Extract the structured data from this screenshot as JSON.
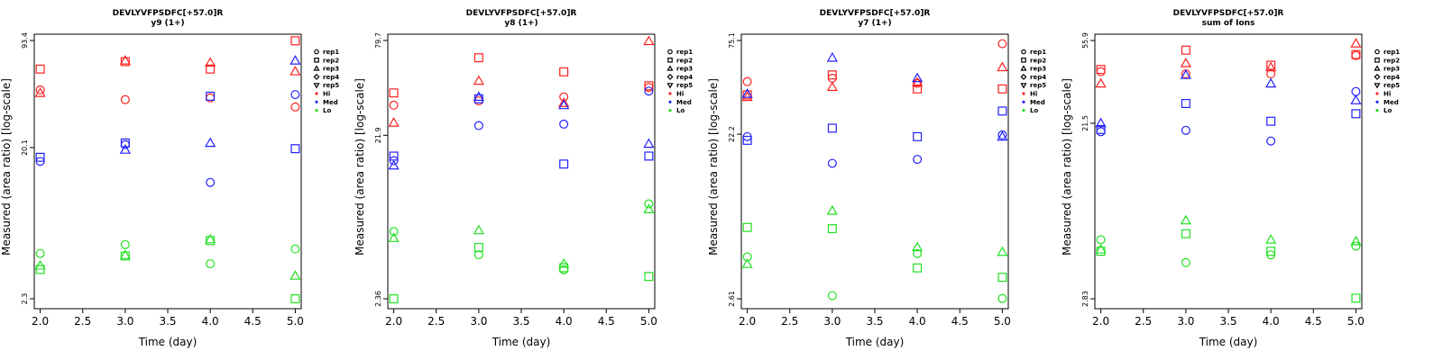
{
  "colors": {
    "Hi": "#ff2020",
    "Med": "#2020ff",
    "Lo": "#20e020"
  },
  "legend": {
    "entries": [
      {
        "label": "rep1",
        "symbol": "circle"
      },
      {
        "label": "rep2",
        "symbol": "square"
      },
      {
        "label": "rep3",
        "symbol": "triangle-up"
      },
      {
        "label": "rep4",
        "symbol": "diamond"
      },
      {
        "label": "rep5",
        "symbol": "triangle-down"
      },
      {
        "label": "Hi",
        "symbol": "dot",
        "color": "#ff2020"
      },
      {
        "label": "Med",
        "symbol": "dot",
        "color": "#2020ff"
      },
      {
        "label": "Lo",
        "symbol": "dot",
        "color": "#20e020"
      }
    ]
  },
  "chart_data": [
    {
      "type": "scatter",
      "title": "DEVLYVFPSDFC[+57.0]R",
      "subtitle": "y9 (1+)",
      "xlabel": "Time (day)",
      "ylabel": "Measured (area ratio) [log-scale]",
      "y_scale": "log",
      "xlim": [
        1.93,
        5.07
      ],
      "ylim": [
        2.3,
        93.4
      ],
      "xticks": [
        "2.0",
        "2.5",
        "3.0",
        "3.5",
        "4.0",
        "4.5",
        "5.0"
      ],
      "yticks": [
        "2.3",
        "20.1",
        "93.4"
      ],
      "points": [
        {
          "x": 2,
          "y": 46,
          "series": "Hi",
          "rep": "rep1"
        },
        {
          "x": 2,
          "y": 62,
          "series": "Hi",
          "rep": "rep2"
        },
        {
          "x": 2,
          "y": 44,
          "series": "Hi",
          "rep": "rep3"
        },
        {
          "x": 2,
          "y": 16.5,
          "series": "Med",
          "rep": "rep1"
        },
        {
          "x": 2,
          "y": 17.5,
          "series": "Med",
          "rep": "rep2"
        },
        {
          "x": 2,
          "y": 4.4,
          "series": "Lo",
          "rep": "rep1"
        },
        {
          "x": 2,
          "y": 3.5,
          "series": "Lo",
          "rep": "rep2"
        },
        {
          "x": 2,
          "y": 3.7,
          "series": "Lo",
          "rep": "rep3"
        },
        {
          "x": 3,
          "y": 40,
          "series": "Hi",
          "rep": "rep1"
        },
        {
          "x": 3,
          "y": 69,
          "series": "Hi",
          "rep": "rep2"
        },
        {
          "x": 3,
          "y": 70,
          "series": "Hi",
          "rep": "rep3"
        },
        {
          "x": 3,
          "y": 21,
          "series": "Med",
          "rep": "rep1"
        },
        {
          "x": 3,
          "y": 21.5,
          "series": "Med",
          "rep": "rep2"
        },
        {
          "x": 3,
          "y": 19.5,
          "series": "Med",
          "rep": "rep3"
        },
        {
          "x": 3,
          "y": 5.0,
          "series": "Lo",
          "rep": "rep1"
        },
        {
          "x": 3,
          "y": 4.25,
          "series": "Lo",
          "rep": "rep2"
        },
        {
          "x": 3,
          "y": 4.3,
          "series": "Lo",
          "rep": "rep3"
        },
        {
          "x": 4,
          "y": 41,
          "series": "Hi",
          "rep": "rep1"
        },
        {
          "x": 4,
          "y": 62,
          "series": "Hi",
          "rep": "rep2"
        },
        {
          "x": 4,
          "y": 68,
          "series": "Hi",
          "rep": "rep3"
        },
        {
          "x": 4,
          "y": 12.2,
          "series": "Med",
          "rep": "rep1"
        },
        {
          "x": 4,
          "y": 42,
          "series": "Med",
          "rep": "rep2"
        },
        {
          "x": 4,
          "y": 21.5,
          "series": "Med",
          "rep": "rep3"
        },
        {
          "x": 4,
          "y": 3.8,
          "series": "Lo",
          "rep": "rep1"
        },
        {
          "x": 4,
          "y": 5.3,
          "series": "Lo",
          "rep": "rep2"
        },
        {
          "x": 4,
          "y": 5.4,
          "series": "Lo",
          "rep": "rep3"
        },
        {
          "x": 5,
          "y": 36,
          "series": "Hi",
          "rep": "rep1"
        },
        {
          "x": 5,
          "y": 93,
          "series": "Hi",
          "rep": "rep2"
        },
        {
          "x": 5,
          "y": 60,
          "series": "Hi",
          "rep": "rep3"
        },
        {
          "x": 5,
          "y": 43,
          "series": "Med",
          "rep": "rep1"
        },
        {
          "x": 5,
          "y": 19.8,
          "series": "Med",
          "rep": "rep2"
        },
        {
          "x": 5,
          "y": 70,
          "series": "Med",
          "rep": "rep3"
        },
        {
          "x": 5,
          "y": 4.7,
          "series": "Lo",
          "rep": "rep1"
        },
        {
          "x": 5,
          "y": 2.3,
          "series": "Lo",
          "rep": "rep2"
        },
        {
          "x": 5,
          "y": 3.2,
          "series": "Lo",
          "rep": "rep3"
        }
      ]
    },
    {
      "type": "scatter",
      "title": "DEVLYVFPSDFC[+57.0]R",
      "subtitle": "y8 (1+)",
      "xlabel": "Time (day)",
      "ylabel": "Measured (area ratio) [log-scale]",
      "y_scale": "log",
      "xlim": [
        1.93,
        5.07
      ],
      "ylim": [
        2.36,
        79.7
      ],
      "xticks": [
        "2.0",
        "2.5",
        "3.0",
        "3.5",
        "4.0",
        "4.5",
        "5.0"
      ],
      "yticks": [
        "2.36",
        "21.9",
        "79.7"
      ],
      "points": [
        {
          "x": 2,
          "y": 33,
          "series": "Hi",
          "rep": "rep1"
        },
        {
          "x": 2,
          "y": 39,
          "series": "Hi",
          "rep": "rep2"
        },
        {
          "x": 2,
          "y": 26,
          "series": "Hi",
          "rep": "rep3"
        },
        {
          "x": 2,
          "y": 15.5,
          "series": "Med",
          "rep": "rep1"
        },
        {
          "x": 2,
          "y": 16.5,
          "series": "Med",
          "rep": "rep2"
        },
        {
          "x": 2,
          "y": 14.5,
          "series": "Med",
          "rep": "rep3"
        },
        {
          "x": 2,
          "y": 5.9,
          "series": "Lo",
          "rep": "rep1"
        },
        {
          "x": 2,
          "y": 2.36,
          "series": "Lo",
          "rep": "rep2"
        },
        {
          "x": 2,
          "y": 5.4,
          "series": "Lo",
          "rep": "rep3"
        },
        {
          "x": 3,
          "y": 35,
          "series": "Hi",
          "rep": "rep1"
        },
        {
          "x": 3,
          "y": 63,
          "series": "Hi",
          "rep": "rep2"
        },
        {
          "x": 3,
          "y": 46,
          "series": "Hi",
          "rep": "rep3"
        },
        {
          "x": 3,
          "y": 25,
          "series": "Med",
          "rep": "rep1"
        },
        {
          "x": 3,
          "y": 36,
          "series": "Med",
          "rep": "rep2"
        },
        {
          "x": 3,
          "y": 37,
          "series": "Med",
          "rep": "rep3"
        },
        {
          "x": 3,
          "y": 4.3,
          "series": "Lo",
          "rep": "rep1"
        },
        {
          "x": 3,
          "y": 4.75,
          "series": "Lo",
          "rep": "rep2"
        },
        {
          "x": 3,
          "y": 6.0,
          "series": "Lo",
          "rep": "rep3"
        },
        {
          "x": 4,
          "y": 37,
          "series": "Hi",
          "rep": "rep1"
        },
        {
          "x": 4,
          "y": 52,
          "series": "Hi",
          "rep": "rep2"
        },
        {
          "x": 4,
          "y": 34,
          "series": "Hi",
          "rep": "rep3"
        },
        {
          "x": 4,
          "y": 25.5,
          "series": "Med",
          "rep": "rep1"
        },
        {
          "x": 4,
          "y": 14.8,
          "series": "Med",
          "rep": "rep2"
        },
        {
          "x": 4,
          "y": 33,
          "series": "Med",
          "rep": "rep3"
        },
        {
          "x": 4,
          "y": 3.5,
          "series": "Lo",
          "rep": "rep1"
        },
        {
          "x": 4,
          "y": 3.6,
          "series": "Lo",
          "rep": "rep2"
        },
        {
          "x": 4,
          "y": 3.8,
          "series": "Lo",
          "rep": "rep3"
        },
        {
          "x": 5,
          "y": 42,
          "series": "Hi",
          "rep": "rep1"
        },
        {
          "x": 5,
          "y": 43,
          "series": "Hi",
          "rep": "rep2"
        },
        {
          "x": 5,
          "y": 79,
          "series": "Hi",
          "rep": "rep3"
        },
        {
          "x": 5,
          "y": 40,
          "series": "Med",
          "rep": "rep1"
        },
        {
          "x": 5,
          "y": 16.5,
          "series": "Med",
          "rep": "rep2"
        },
        {
          "x": 5,
          "y": 19.5,
          "series": "Med",
          "rep": "rep3"
        },
        {
          "x": 5,
          "y": 8.6,
          "series": "Lo",
          "rep": "rep1"
        },
        {
          "x": 5,
          "y": 3.2,
          "series": "Lo",
          "rep": "rep2"
        },
        {
          "x": 5,
          "y": 8.0,
          "series": "Lo",
          "rep": "rep3"
        }
      ]
    },
    {
      "type": "scatter",
      "title": "DEVLYVFPSDFC[+57.0]R",
      "subtitle": "y7 (1+)",
      "xlabel": "Time (day)",
      "ylabel": "Measured (area ratio) [log-scale]",
      "y_scale": "log",
      "xlim": [
        1.93,
        5.07
      ],
      "ylim": [
        2.61,
        75.1
      ],
      "xticks": [
        "2.0",
        "2.5",
        "3.0",
        "3.5",
        "4.0",
        "4.5",
        "5.0"
      ],
      "yticks": [
        "2.61",
        "22.2",
        "75.1"
      ],
      "points": [
        {
          "x": 2,
          "y": 44,
          "series": "Hi",
          "rep": "rep1"
        },
        {
          "x": 2,
          "y": 37,
          "series": "Hi",
          "rep": "rep2"
        },
        {
          "x": 2,
          "y": 36,
          "series": "Hi",
          "rep": "rep3"
        },
        {
          "x": 2,
          "y": 21.5,
          "series": "Med",
          "rep": "rep1"
        },
        {
          "x": 2,
          "y": 20.5,
          "series": "Med",
          "rep": "rep2"
        },
        {
          "x": 2,
          "y": 37.5,
          "series": "Med",
          "rep": "rep3"
        },
        {
          "x": 2,
          "y": 4.5,
          "series": "Lo",
          "rep": "rep1"
        },
        {
          "x": 2,
          "y": 6.6,
          "series": "Lo",
          "rep": "rep2"
        },
        {
          "x": 2,
          "y": 4.1,
          "series": "Lo",
          "rep": "rep3"
        },
        {
          "x": 3,
          "y": 46,
          "series": "Hi",
          "rep": "rep1"
        },
        {
          "x": 3,
          "y": 48,
          "series": "Hi",
          "rep": "rep2"
        },
        {
          "x": 3,
          "y": 41,
          "series": "Hi",
          "rep": "rep3"
        },
        {
          "x": 3,
          "y": 15.2,
          "series": "Med",
          "rep": "rep1"
        },
        {
          "x": 3,
          "y": 24,
          "series": "Med",
          "rep": "rep2"
        },
        {
          "x": 3,
          "y": 60,
          "series": "Med",
          "rep": "rep3"
        },
        {
          "x": 3,
          "y": 2.72,
          "series": "Lo",
          "rep": "rep1"
        },
        {
          "x": 3,
          "y": 6.5,
          "series": "Lo",
          "rep": "rep2"
        },
        {
          "x": 3,
          "y": 8.2,
          "series": "Lo",
          "rep": "rep3"
        },
        {
          "x": 4,
          "y": 43,
          "series": "Hi",
          "rep": "rep1"
        },
        {
          "x": 4,
          "y": 40,
          "series": "Hi",
          "rep": "rep2"
        },
        {
          "x": 4,
          "y": 43.5,
          "series": "Hi",
          "rep": "rep3"
        },
        {
          "x": 4,
          "y": 16,
          "series": "Med",
          "rep": "rep1"
        },
        {
          "x": 4,
          "y": 21.5,
          "series": "Med",
          "rep": "rep2"
        },
        {
          "x": 4,
          "y": 46,
          "series": "Med",
          "rep": "rep3"
        },
        {
          "x": 4,
          "y": 4.7,
          "series": "Lo",
          "rep": "rep1"
        },
        {
          "x": 4,
          "y": 3.9,
          "series": "Lo",
          "rep": "rep2"
        },
        {
          "x": 4,
          "y": 5.1,
          "series": "Lo",
          "rep": "rep3"
        },
        {
          "x": 5,
          "y": 72,
          "series": "Hi",
          "rep": "rep1"
        },
        {
          "x": 5,
          "y": 40,
          "series": "Hi",
          "rep": "rep2"
        },
        {
          "x": 5,
          "y": 53,
          "series": "Hi",
          "rep": "rep3"
        },
        {
          "x": 5,
          "y": 22,
          "series": "Med",
          "rep": "rep1"
        },
        {
          "x": 5,
          "y": 30,
          "series": "Med",
          "rep": "rep2"
        },
        {
          "x": 5,
          "y": 21.5,
          "series": "Med",
          "rep": "rep3"
        },
        {
          "x": 5,
          "y": 2.62,
          "series": "Lo",
          "rep": "rep1"
        },
        {
          "x": 5,
          "y": 3.45,
          "series": "Lo",
          "rep": "rep2"
        },
        {
          "x": 5,
          "y": 4.8,
          "series": "Lo",
          "rep": "rep3"
        }
      ]
    },
    {
      "type": "scatter",
      "title": "DEVLYVFPSDFC[+57.0]R",
      "subtitle": "sum of Ions",
      "xlabel": "Time (day)",
      "ylabel": "Measured (area ratio) [log-scale]",
      "y_scale": "log",
      "xlim": [
        1.93,
        5.07
      ],
      "ylim": [
        2.83,
        55.9
      ],
      "xticks": [
        "2.0",
        "2.5",
        "3.0",
        "3.5",
        "4.0",
        "4.5",
        "5.0"
      ],
      "yticks": [
        "2.83",
        "21.5",
        "55.9"
      ],
      "points": [
        {
          "x": 2,
          "y": 39,
          "series": "Hi",
          "rep": "rep1"
        },
        {
          "x": 2,
          "y": 40,
          "series": "Hi",
          "rep": "rep2"
        },
        {
          "x": 2,
          "y": 34,
          "series": "Hi",
          "rep": "rep3"
        },
        {
          "x": 2,
          "y": 19.5,
          "series": "Med",
          "rep": "rep1"
        },
        {
          "x": 2,
          "y": 20,
          "series": "Med",
          "rep": "rep2"
        },
        {
          "x": 2,
          "y": 21.5,
          "series": "Med",
          "rep": "rep3"
        },
        {
          "x": 2,
          "y": 5.6,
          "series": "Lo",
          "rep": "rep1"
        },
        {
          "x": 2,
          "y": 4.9,
          "series": "Lo",
          "rep": "rep2"
        },
        {
          "x": 2,
          "y": 5.0,
          "series": "Lo",
          "rep": "rep3"
        },
        {
          "x": 3,
          "y": 38,
          "series": "Hi",
          "rep": "rep1"
        },
        {
          "x": 3,
          "y": 50,
          "series": "Hi",
          "rep": "rep2"
        },
        {
          "x": 3,
          "y": 43,
          "series": "Hi",
          "rep": "rep3"
        },
        {
          "x": 3,
          "y": 19.8,
          "series": "Med",
          "rep": "rep1"
        },
        {
          "x": 3,
          "y": 27,
          "series": "Med",
          "rep": "rep2"
        },
        {
          "x": 3,
          "y": 37.5,
          "series": "Med",
          "rep": "rep3"
        },
        {
          "x": 3,
          "y": 4.3,
          "series": "Lo",
          "rep": "rep1"
        },
        {
          "x": 3,
          "y": 6.0,
          "series": "Lo",
          "rep": "rep2"
        },
        {
          "x": 3,
          "y": 7.0,
          "series": "Lo",
          "rep": "rep3"
        },
        {
          "x": 4,
          "y": 38,
          "series": "Hi",
          "rep": "rep1"
        },
        {
          "x": 4,
          "y": 42,
          "series": "Hi",
          "rep": "rep2"
        },
        {
          "x": 4,
          "y": 41,
          "series": "Hi",
          "rep": "rep3"
        },
        {
          "x": 4,
          "y": 17.5,
          "series": "Med",
          "rep": "rep1"
        },
        {
          "x": 4,
          "y": 22,
          "series": "Med",
          "rep": "rep2"
        },
        {
          "x": 4,
          "y": 34,
          "series": "Med",
          "rep": "rep3"
        },
        {
          "x": 4,
          "y": 4.7,
          "series": "Lo",
          "rep": "rep1"
        },
        {
          "x": 4,
          "y": 4.9,
          "series": "Lo",
          "rep": "rep2"
        },
        {
          "x": 4,
          "y": 5.6,
          "series": "Lo",
          "rep": "rep3"
        },
        {
          "x": 5,
          "y": 47,
          "series": "Hi",
          "rep": "rep1"
        },
        {
          "x": 5,
          "y": 47.5,
          "series": "Hi",
          "rep": "rep2"
        },
        {
          "x": 5,
          "y": 54,
          "series": "Hi",
          "rep": "rep3"
        },
        {
          "x": 5,
          "y": 31,
          "series": "Med",
          "rep": "rep1"
        },
        {
          "x": 5,
          "y": 24,
          "series": "Med",
          "rep": "rep2"
        },
        {
          "x": 5,
          "y": 28,
          "series": "Med",
          "rep": "rep3"
        },
        {
          "x": 5,
          "y": 5.2,
          "series": "Lo",
          "rep": "rep1"
        },
        {
          "x": 5,
          "y": 2.85,
          "series": "Lo",
          "rep": "rep2"
        },
        {
          "x": 5,
          "y": 5.5,
          "series": "Lo",
          "rep": "rep3"
        }
      ]
    }
  ]
}
